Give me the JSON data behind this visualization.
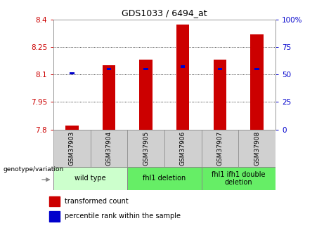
{
  "title": "GDS1033 / 6494_at",
  "samples": [
    "GSM37903",
    "GSM37904",
    "GSM37905",
    "GSM37906",
    "GSM37907",
    "GSM37908"
  ],
  "red_values": [
    7.82,
    8.15,
    8.18,
    8.37,
    8.18,
    8.32
  ],
  "blue_values": [
    51,
    55,
    55,
    57,
    55,
    55
  ],
  "ylim_left": [
    7.8,
    8.4
  ],
  "ylim_right": [
    0,
    100
  ],
  "yticks_left": [
    7.8,
    7.95,
    8.1,
    8.25,
    8.4
  ],
  "yticks_right": [
    0,
    25,
    50,
    75,
    100
  ],
  "ytick_labels_left": [
    "7.8",
    "7.95",
    "8.1",
    "8.25",
    "8.4"
  ],
  "ytick_labels_right": [
    "0",
    "25",
    "50",
    "75",
    "100%"
  ],
  "groups": [
    {
      "label": "wild type",
      "samples": [
        0,
        1
      ],
      "color": "#ccffcc"
    },
    {
      "label": "fhl1 deletion",
      "samples": [
        2,
        3
      ],
      "color": "#66ee66"
    },
    {
      "label": "fhl1 ifh1 double\ndeletion",
      "samples": [
        4,
        5
      ],
      "color": "#66ee66"
    }
  ],
  "bar_width": 0.35,
  "blue_bar_width": 0.12,
  "red_color": "#cc0000",
  "blue_color": "#0000cc",
  "sample_box_color": "#d0d0d0",
  "legend_red": "transformed count",
  "legend_blue": "percentile rank within the sample",
  "genotype_label": "genotype/variation",
  "spine_color": "#999999"
}
